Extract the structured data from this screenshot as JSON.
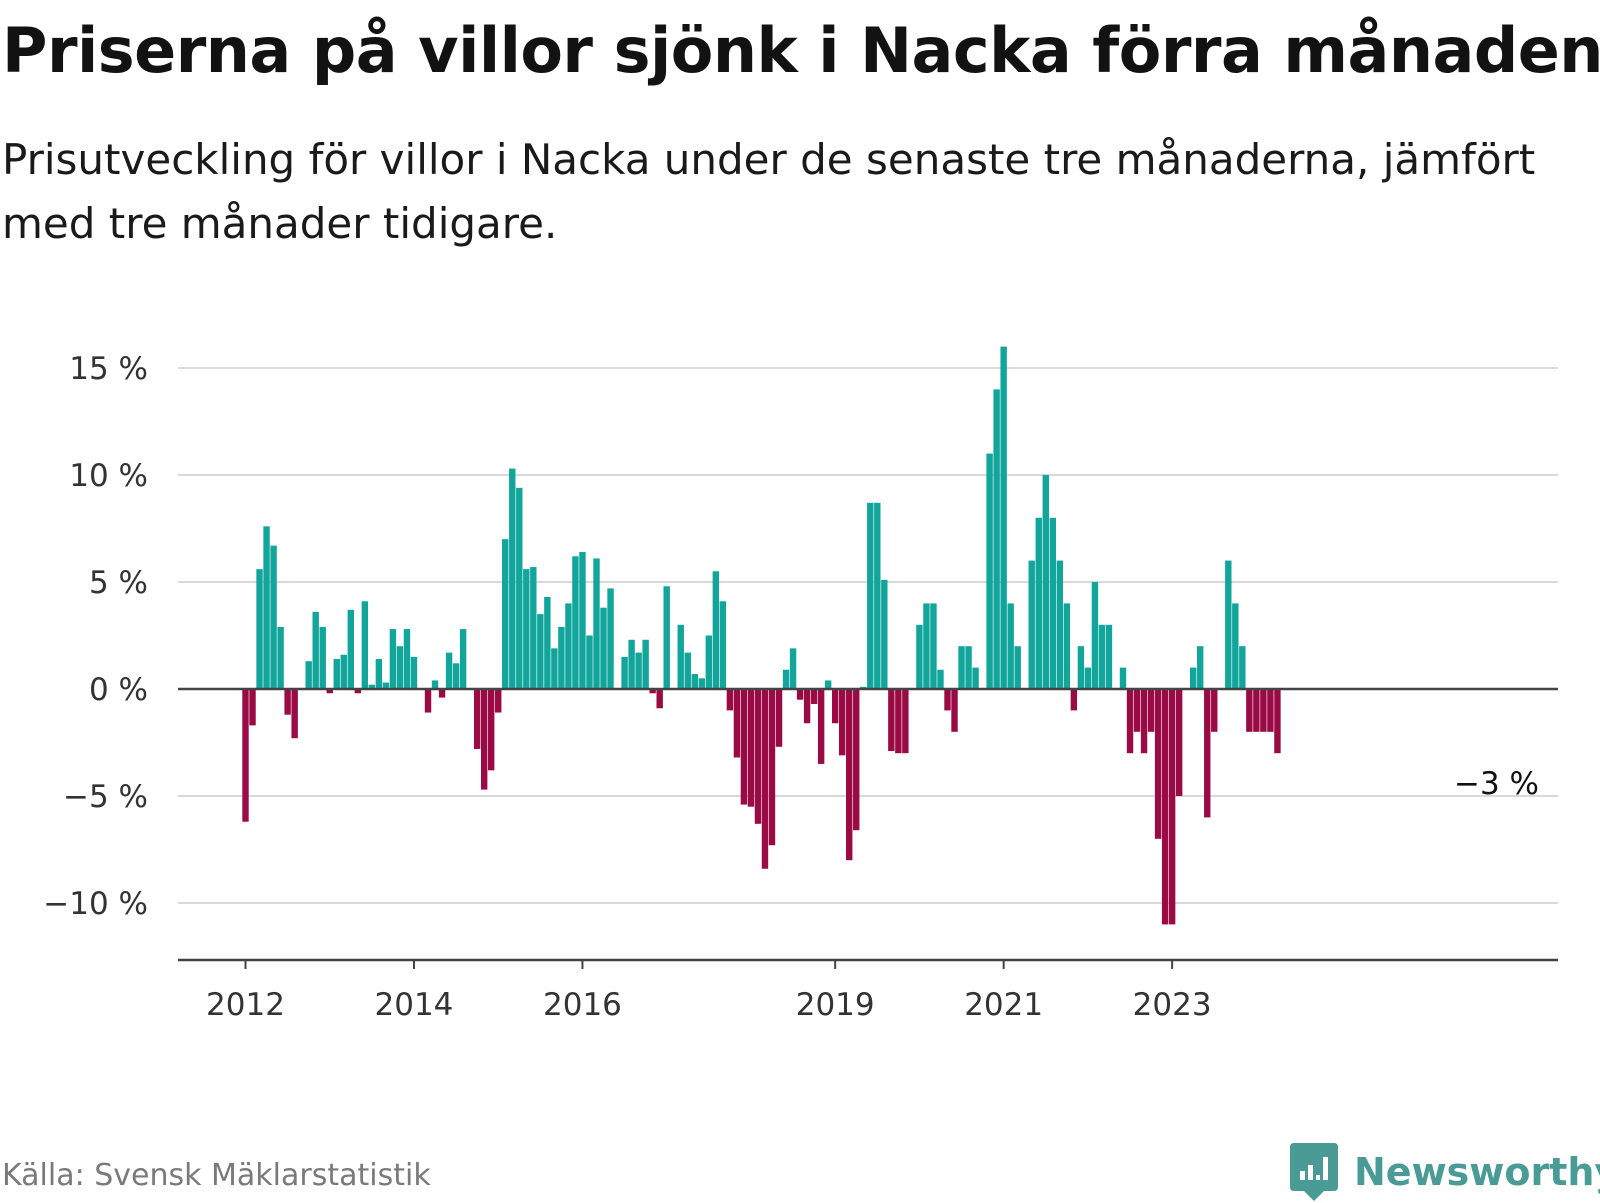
{
  "title": "Priserna på villor sjönk i Nacka förra månaden",
  "subtitle": "Prisutveckling för villor i Nacka under de senaste tre månaderna, jämfört med tre månader tidigare.",
  "source": "Källa: Svensk Mäklarstatistik",
  "brand": {
    "name": "Newsworthy",
    "icon": "newsworthy-chart-logo-icon"
  },
  "colors": {
    "positive": "#12a59b",
    "negative": "#9a0a45",
    "grid": "#d9d9d9",
    "axis": "#444444",
    "brand": "#4a9a96"
  },
  "chart_data": {
    "type": "bar",
    "title": "Priserna på villor sjönk i Nacka förra månaden",
    "xlabel": "",
    "ylabel": "",
    "unit": "%",
    "ylim": [
      -12.5,
      17
    ],
    "yticks": [
      15,
      10,
      5,
      0,
      -5,
      -10
    ],
    "ytick_labels": [
      "15 %",
      "10 %",
      "5 %",
      "0 %",
      "−5 %",
      "−10 %"
    ],
    "x_start": "2012-01",
    "xticks": [
      {
        "label": "2012",
        "index": 0
      },
      {
        "label": "2014",
        "index": 24
      },
      {
        "label": "2016",
        "index": 48
      },
      {
        "label": "2019",
        "index": 84
      },
      {
        "label": "2021",
        "index": 108
      },
      {
        "label": "2023",
        "index": 132
      }
    ],
    "last_value_label": "−3 %",
    "values": [
      -6.2,
      -1.7,
      5.6,
      7.6,
      6.7,
      2.9,
      -1.2,
      -2.3,
      0,
      1.3,
      3.6,
      2.9,
      -0.2,
      1.4,
      1.6,
      3.7,
      -0.2,
      4.1,
      0.2,
      1.4,
      0.3,
      2.8,
      2.0,
      2.8,
      1.5,
      0,
      -1.1,
      0.4,
      -0.4,
      1.7,
      1.2,
      2.8,
      0,
      -2.8,
      -4.7,
      -3.8,
      -1.1,
      7.0,
      10.3,
      9.4,
      5.6,
      5.7,
      3.5,
      4.3,
      1.9,
      2.9,
      4.0,
      6.2,
      6.4,
      2.5,
      6.1,
      3.8,
      4.7,
      0,
      1.5,
      2.3,
      1.7,
      2.3,
      -0.2,
      -0.9,
      4.8,
      0,
      3.0,
      1.7,
      0.7,
      0.5,
      2.5,
      5.5,
      4.1,
      -1.0,
      -3.2,
      -5.4,
      -5.5,
      -6.3,
      -8.4,
      -7.3,
      -2.7,
      0.9,
      1.9,
      -0.5,
      -1.6,
      -0.7,
      -3.5,
      0.4,
      -1.6,
      -3.1,
      -8.0,
      -6.6,
      0.1,
      8.7,
      8.7,
      5.1,
      -2.9,
      -3.0,
      -3.0,
      0,
      3.0,
      4.0,
      4.0,
      0.9,
      -1.0,
      -2.0,
      2.0,
      2.0,
      1.0,
      0,
      11.0,
      14.0,
      16.0,
      4.0,
      2.0,
      0,
      6.0,
      8.0,
      10.0,
      8.0,
      6.0,
      4.0,
      -1.0,
      2.0,
      1.0,
      5.0,
      3.0,
      3.0,
      0,
      1.0,
      -3.0,
      -2.0,
      -3.0,
      -2.0,
      -7.0,
      -11.0,
      -11.0,
      -5.0,
      0,
      1.0,
      2.0,
      -6.0,
      -2.0,
      0,
      6.0,
      4.0,
      2.0,
      -2.0,
      -2.0,
      -2.0,
      -2.0,
      -3.0
    ]
  }
}
